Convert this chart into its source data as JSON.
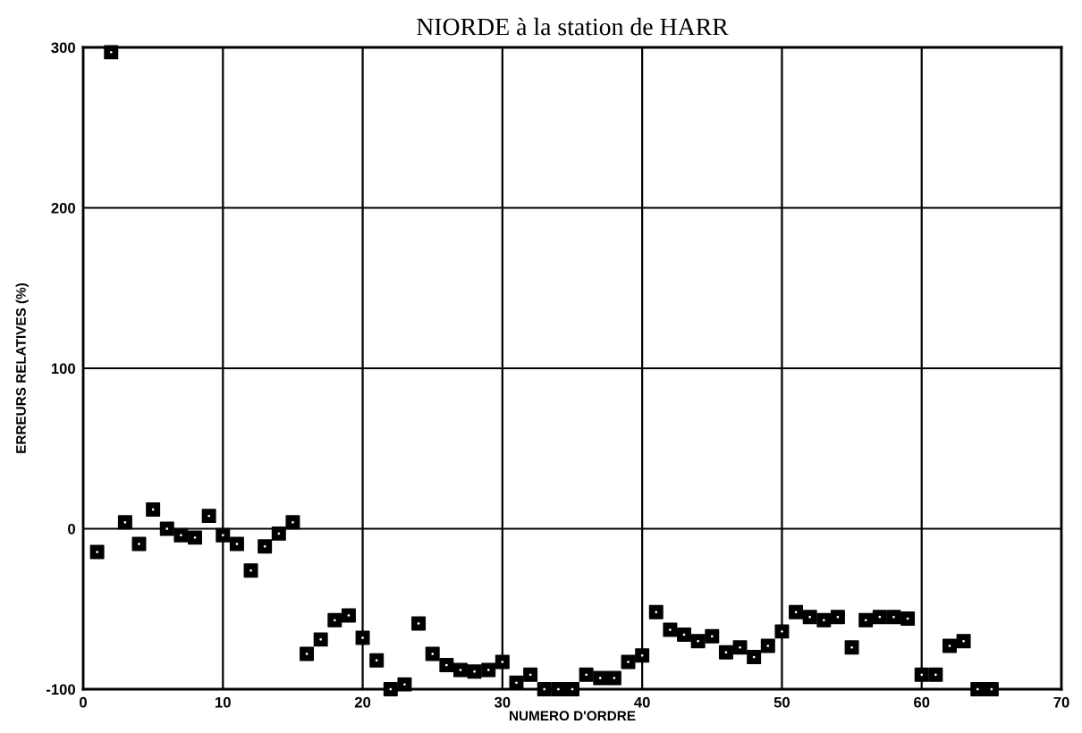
{
  "chart_data": {
    "type": "scatter",
    "title": "NIORDE à la station de HARR",
    "xlabel": "NUMERO D'ORDRE",
    "ylabel": "ERREURS RELATIVES (%)",
    "x": [
      1,
      2,
      3,
      4,
      5,
      6,
      7,
      8,
      9,
      10,
      11,
      12,
      13,
      14,
      15,
      16,
      17,
      18,
      19,
      20,
      21,
      22,
      23,
      24,
      25,
      26,
      27,
      28,
      29,
      30,
      31,
      32,
      33,
      34,
      35,
      36,
      37,
      38,
      39,
      40,
      41,
      42,
      43,
      44,
      45,
      46,
      47,
      48,
      49,
      50,
      51,
      52,
      53,
      54,
      55,
      56,
      57,
      58,
      59,
      60,
      61,
      62,
      63,
      64,
      65
    ],
    "series": [
      {
        "color": "#000000",
        "values": [
          -14.5,
          297,
          4,
          -9.5,
          12,
          0,
          -4,
          -5.5,
          8,
          -4,
          -9.5,
          -26,
          -11,
          -3,
          4,
          -78,
          -69,
          -57,
          -54,
          -68,
          -82,
          -100,
          -97,
          -59,
          -78,
          -85,
          -88,
          -89,
          -88,
          -83,
          -96,
          -91,
          -100,
          -100,
          -100,
          -91,
          -93,
          -93,
          -83,
          -79,
          -52,
          -63,
          -66,
          -70,
          -67,
          -77,
          -74,
          -80,
          -73,
          -64,
          -52,
          -55,
          -57,
          -55,
          -74,
          -57,
          -55,
          -55,
          -56,
          -91,
          -91,
          -73,
          -70,
          -100,
          -100
        ]
      }
    ],
    "xlim": [
      0,
      70
    ],
    "xticks": [
      0,
      10,
      20,
      30,
      40,
      50,
      60,
      70
    ],
    "ylim": [
      -100,
      300
    ],
    "yticks": [
      -100,
      0,
      100,
      200,
      300
    ],
    "grid": true,
    "marker": "square"
  }
}
